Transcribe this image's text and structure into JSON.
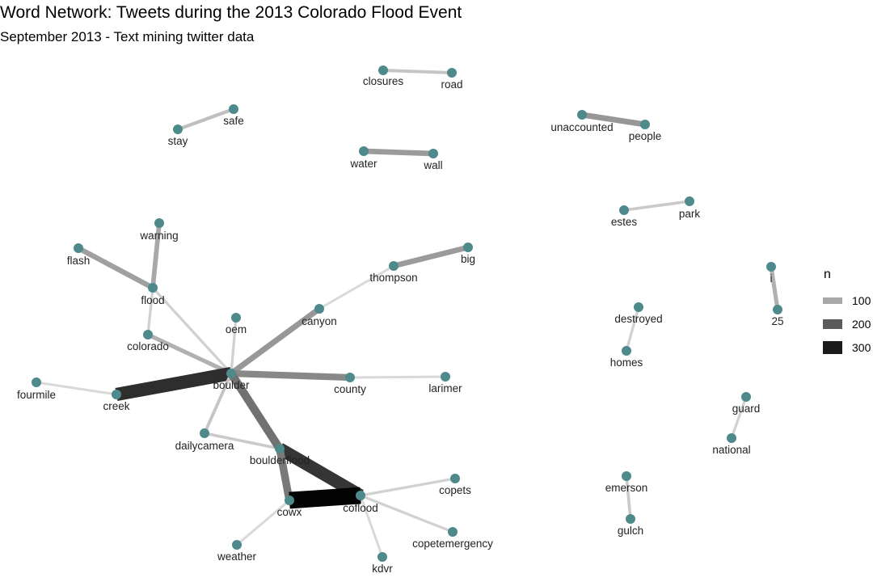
{
  "title": "Word Network: Tweets during the 2013 Colorado Flood Event",
  "subtitle": "September 2013 - Text mining twitter data",
  "legend": {
    "title": "n",
    "entries": [
      {
        "label": "100",
        "value": 100
      },
      {
        "label": "200",
        "value": 200
      },
      {
        "label": "300",
        "value": 300
      }
    ]
  },
  "colors": {
    "node": "#4e8a8b",
    "edge_low": "#d9d9d9",
    "edge_high": "#000000"
  },
  "nodes": [
    {
      "id": "closures",
      "label": "closures"
    },
    {
      "id": "road",
      "label": "road"
    },
    {
      "id": "safe",
      "label": "safe"
    },
    {
      "id": "stay",
      "label": "stay"
    },
    {
      "id": "unaccounted",
      "label": "unaccounted"
    },
    {
      "id": "people",
      "label": "people"
    },
    {
      "id": "water",
      "label": "water"
    },
    {
      "id": "wall",
      "label": "wall"
    },
    {
      "id": "estes",
      "label": "estes"
    },
    {
      "id": "park",
      "label": "park"
    },
    {
      "id": "warning",
      "label": "warning"
    },
    {
      "id": "flash",
      "label": "flash"
    },
    {
      "id": "flood",
      "label": "flood"
    },
    {
      "id": "big",
      "label": "big"
    },
    {
      "id": "thompson",
      "label": "thompson"
    },
    {
      "id": "i",
      "label": "i"
    },
    {
      "id": "25",
      "label": "25"
    },
    {
      "id": "destroyed",
      "label": "destroyed"
    },
    {
      "id": "homes",
      "label": "homes"
    },
    {
      "id": "oem",
      "label": "oem"
    },
    {
      "id": "canyon",
      "label": "canyon"
    },
    {
      "id": "colorado",
      "label": "colorado"
    },
    {
      "id": "boulder",
      "label": "boulder"
    },
    {
      "id": "county",
      "label": "county"
    },
    {
      "id": "larimer",
      "label": "larimer"
    },
    {
      "id": "fourmile",
      "label": "fourmile"
    },
    {
      "id": "creek",
      "label": "creek"
    },
    {
      "id": "guard",
      "label": "guard"
    },
    {
      "id": "national",
      "label": "national"
    },
    {
      "id": "dailycamera",
      "label": "dailycamera"
    },
    {
      "id": "boulderflood",
      "label": "boulderflood"
    },
    {
      "id": "copets",
      "label": "copets"
    },
    {
      "id": "cowx",
      "label": "cowx"
    },
    {
      "id": "coflood",
      "label": "coflood"
    },
    {
      "id": "emerson",
      "label": "emerson"
    },
    {
      "id": "gulch",
      "label": "gulch"
    },
    {
      "id": "copetemergency",
      "label": "copetemergency"
    },
    {
      "id": "weather",
      "label": "weather"
    },
    {
      "id": "kdvr",
      "label": "kdvr"
    }
  ],
  "edges": [
    {
      "source": "closures",
      "target": "road",
      "n": 70
    },
    {
      "source": "stay",
      "target": "safe",
      "n": 75
    },
    {
      "source": "unaccounted",
      "target": "people",
      "n": 120
    },
    {
      "source": "water",
      "target": "wall",
      "n": 115
    },
    {
      "source": "estes",
      "target": "park",
      "n": 65
    },
    {
      "source": "flash",
      "target": "flood",
      "n": 110
    },
    {
      "source": "warning",
      "target": "flood",
      "n": 100
    },
    {
      "source": "thompson",
      "target": "big",
      "n": 115
    },
    {
      "source": "i",
      "target": "25",
      "n": 90
    },
    {
      "source": "destroyed",
      "target": "homes",
      "n": 60
    },
    {
      "source": "guard",
      "target": "national",
      "n": 60
    },
    {
      "source": "emerson",
      "target": "gulch",
      "n": 65
    },
    {
      "source": "flood",
      "target": "boulder",
      "n": 60
    },
    {
      "source": "flood",
      "target": "colorado",
      "n": 60
    },
    {
      "source": "colorado",
      "target": "boulder",
      "n": 90
    },
    {
      "source": "oem",
      "target": "boulder",
      "n": 60
    },
    {
      "source": "canyon",
      "target": "boulder",
      "n": 120
    },
    {
      "source": "thompson",
      "target": "canyon",
      "n": 55
    },
    {
      "source": "boulder",
      "target": "county",
      "n": 140
    },
    {
      "source": "county",
      "target": "larimer",
      "n": 55
    },
    {
      "source": "fourmile",
      "target": "creek",
      "n": 55
    },
    {
      "source": "creek",
      "target": "boulder",
      "n": 270
    },
    {
      "source": "dailycamera",
      "target": "boulder",
      "n": 70
    },
    {
      "source": "dailycamera",
      "target": "boulderflood",
      "n": 65
    },
    {
      "source": "boulder",
      "target": "boulderflood",
      "n": 170
    },
    {
      "source": "boulderflood",
      "target": "coflood",
      "n": 260
    },
    {
      "source": "boulderflood",
      "target": "cowx",
      "n": 160
    },
    {
      "source": "cowx",
      "target": "coflood",
      "n": 340
    },
    {
      "source": "coflood",
      "target": "copets",
      "n": 60
    },
    {
      "source": "coflood",
      "target": "copetemergency",
      "n": 60
    },
    {
      "source": "coflood",
      "target": "kdvr",
      "n": 55
    },
    {
      "source": "cowx",
      "target": "weather",
      "n": 55
    }
  ]
}
